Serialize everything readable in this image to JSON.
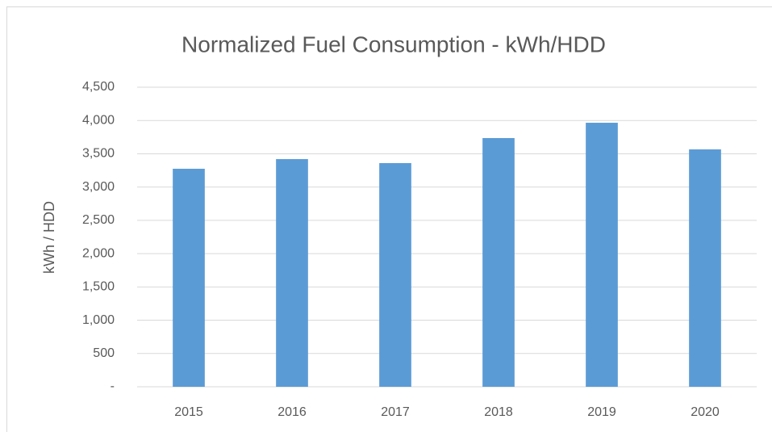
{
  "chart_data": {
    "type": "bar",
    "title": "Normalized Fuel Consumption - kWh/HDD",
    "y_label": "kWh / HDD",
    "categories": [
      "2015",
      "2016",
      "2017",
      "2018",
      "2019",
      "2020"
    ],
    "values": [
      3275,
      3420,
      3360,
      3736,
      3966,
      3566
    ],
    "color": "#5b9bd5",
    "ylim": [
      0,
      4500
    ],
    "yticks": [
      {
        "value": 0,
        "label": "-"
      },
      500,
      {
        "value": 1000,
        "label": "1,000"
      },
      {
        "value": 1500,
        "label": "1,500"
      },
      {
        "value": 2000,
        "label": "2,000"
      },
      {
        "value": 2500,
        "label": "2,500"
      },
      {
        "value": 3000,
        "label": "3,000"
      },
      {
        "value": 3500,
        "label": "3,500"
      },
      {
        "value": 4000,
        "label": "4,000"
      },
      {
        "value": 4500,
        "label": "4,500"
      }
    ],
    "grid": true
  }
}
